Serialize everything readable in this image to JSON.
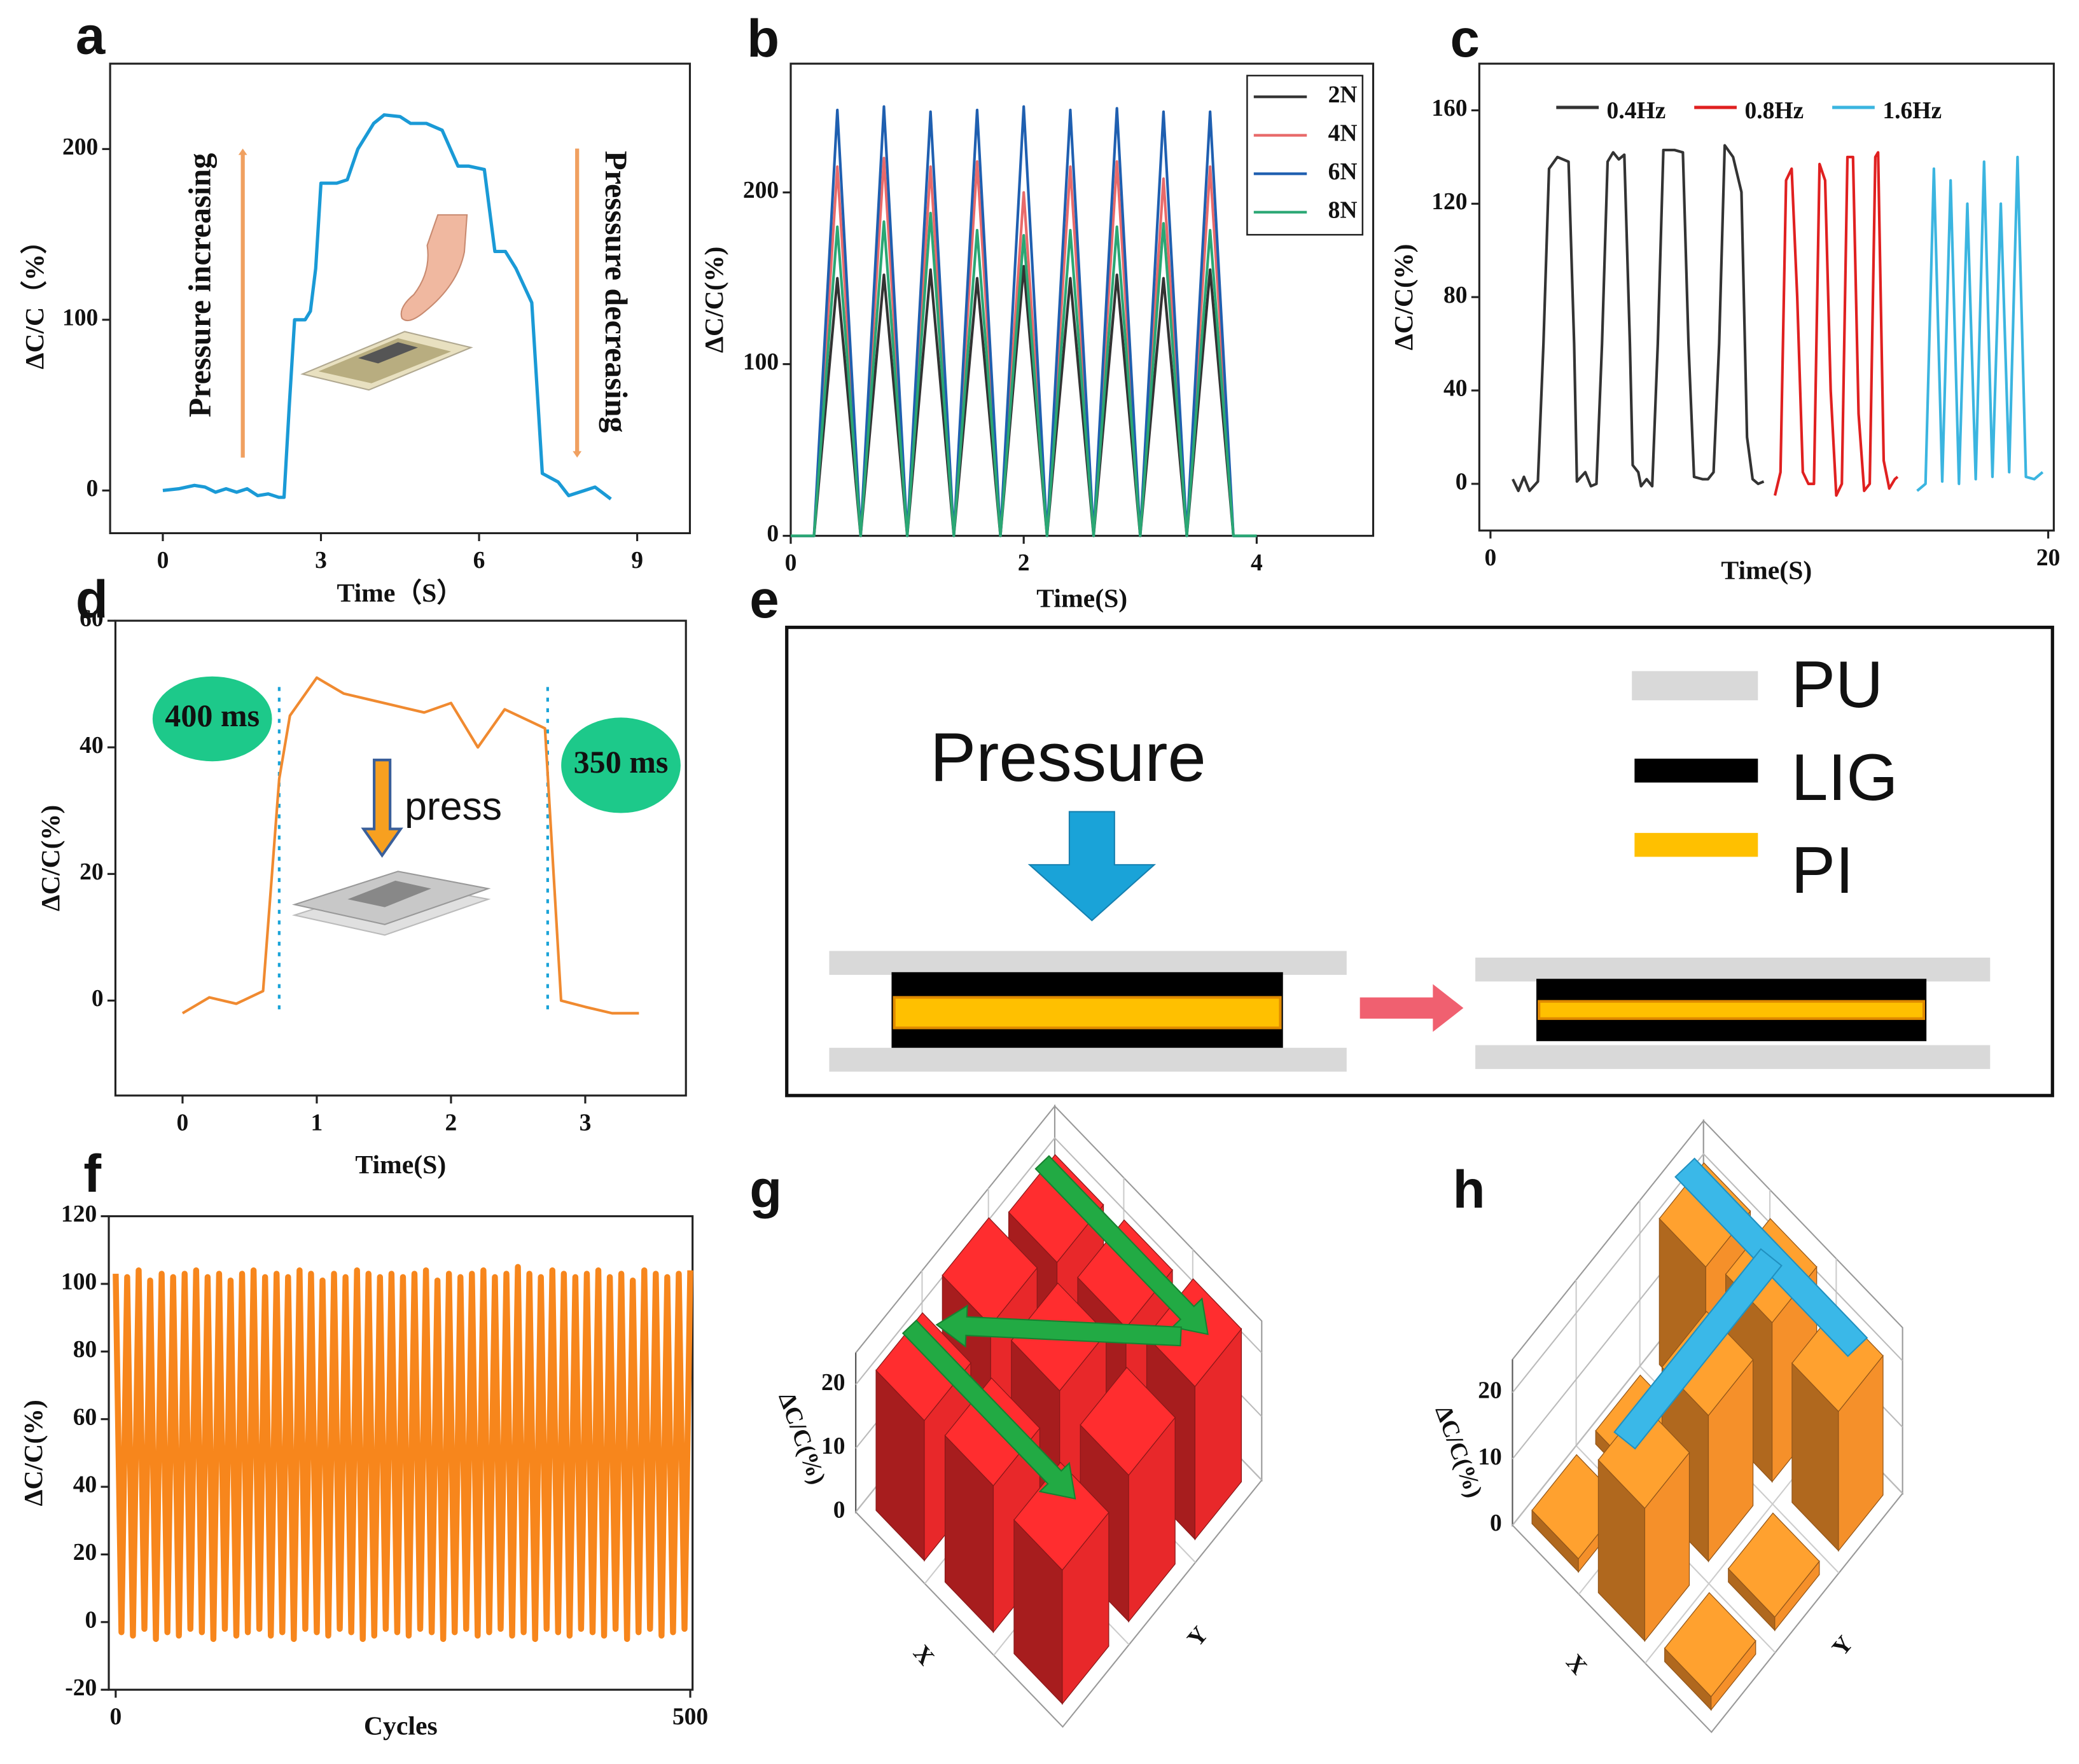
{
  "chart_data": [
    {
      "panel": "a",
      "type": "line",
      "xlabel": "Time（S）",
      "ylabel": "ΔC/C（%）",
      "color": "#1a9ad6",
      "x": [
        0,
        0.3,
        0.6,
        0.8,
        1.0,
        1.2,
        1.4,
        1.6,
        1.8,
        2.0,
        2.2,
        2.3,
        2.4,
        2.5,
        2.7,
        2.8,
        2.9,
        3.0,
        3.3,
        3.5,
        3.7,
        4.0,
        4.2,
        4.5,
        4.7,
        5.0,
        5.3,
        5.6,
        5.8,
        6.1,
        6.3,
        6.5,
        6.7,
        7.0,
        7.2,
        7.5,
        7.7,
        8.0,
        8.2,
        8.5
      ],
      "values": [
        0,
        1,
        3,
        2,
        -1,
        1,
        -1,
        1,
        -3,
        -2,
        -4,
        -4,
        50,
        100,
        100,
        105,
        130,
        180,
        180,
        182,
        200,
        215,
        220,
        219,
        215,
        215,
        211,
        190,
        190,
        188,
        140,
        140,
        130,
        110,
        10,
        5,
        -3,
        0,
        2,
        -5
      ],
      "xlim": [
        -1,
        10
      ],
      "xticks": [
        0,
        3,
        6,
        9
      ],
      "ylim": [
        -25,
        250
      ],
      "yticks": [
        0,
        100,
        200
      ],
      "annotations": [
        "Pressure increasing",
        "Presssure decreasing"
      ]
    },
    {
      "panel": "b",
      "type": "line",
      "xlabel": "Time(S)",
      "ylabel": "ΔC/C(%)",
      "legend": "upper right",
      "x": [
        0,
        0.2,
        0.4,
        0.6,
        0.8,
        1.0,
        1.2,
        1.4,
        1.6,
        1.8,
        2.0,
        2.2,
        2.4,
        2.6,
        2.8,
        3.0,
        3.2,
        3.4,
        3.6,
        3.8,
        4.0
      ],
      "series": [
        {
          "name": "2N",
          "color": "#333333",
          "values": [
            0,
            0,
            150,
            0,
            152,
            0,
            155,
            0,
            150,
            0,
            157,
            0,
            150,
            0,
            152,
            0,
            150,
            0,
            155,
            0,
            0
          ]
        },
        {
          "name": "4N",
          "color": "#e86a6a",
          "values": [
            0,
            0,
            215,
            0,
            220,
            0,
            215,
            0,
            218,
            0,
            200,
            0,
            215,
            0,
            218,
            0,
            208,
            0,
            215,
            0,
            0
          ]
        },
        {
          "name": "6N",
          "color": "#1f5fb0",
          "values": [
            0,
            0,
            248,
            0,
            250,
            0,
            247,
            0,
            248,
            0,
            250,
            0,
            248,
            0,
            249,
            0,
            247,
            0,
            247,
            0,
            0
          ]
        },
        {
          "name": "8N",
          "color": "#2aa774",
          "values": [
            0,
            0,
            180,
            0,
            183,
            0,
            188,
            0,
            178,
            0,
            175,
            0,
            178,
            0,
            180,
            0,
            182,
            0,
            178,
            0,
            0
          ]
        }
      ],
      "xlim": [
        0,
        5
      ],
      "xticks": [
        0,
        2,
        4
      ],
      "ylim": [
        0,
        275
      ],
      "yticks": [
        0,
        100,
        200
      ]
    },
    {
      "panel": "c",
      "type": "line",
      "xlabel": "Time(S)",
      "ylabel": "ΔC/C(%)",
      "legend": "upper center",
      "series": [
        {
          "name": "0.4Hz",
          "color": "#333333",
          "x": [
            0.8,
            1.0,
            1.2,
            1.4,
            1.7,
            1.9,
            2.1,
            2.4,
            2.8,
            3.0,
            3.1,
            3.4,
            3.6,
            3.8,
            4.0,
            4.2,
            4.4,
            4.6,
            4.8,
            5.0,
            5.1,
            5.3,
            5.4,
            5.6,
            5.8,
            6.0,
            6.2,
            6.6,
            6.9,
            7.1,
            7.3,
            7.6,
            7.8,
            8.0,
            8.2,
            8.4,
            8.7,
            9.0,
            9.2,
            9.4,
            9.6,
            9.8
          ],
          "values": [
            2,
            -3,
            3,
            -3,
            1,
            60,
            135,
            140,
            138,
            60,
            1,
            5,
            -1,
            0,
            60,
            138,
            142,
            139,
            141,
            60,
            8,
            5,
            -1,
            2,
            -1,
            60,
            143,
            143,
            142,
            60,
            3,
            2,
            2,
            5,
            60,
            145,
            140,
            125,
            20,
            2,
            0,
            1
          ]
        },
        {
          "name": "0.8Hz",
          "color": "#e02020",
          "x": [
            10.2,
            10.4,
            10.6,
            10.8,
            11.0,
            11.2,
            11.4,
            11.6,
            11.8,
            12.0,
            12.2,
            12.4,
            12.6,
            12.8,
            13.0,
            13.2,
            13.4,
            13.6,
            13.8,
            13.9,
            14.1,
            14.3,
            14.5,
            14.6
          ],
          "values": [
            -5,
            5,
            130,
            135,
            80,
            5,
            0,
            0,
            137,
            130,
            40,
            -5,
            0,
            140,
            140,
            30,
            -3,
            0,
            140,
            142,
            10,
            -2,
            2,
            3
          ]
        },
        {
          "name": "1.6Hz",
          "color": "#3bb5e0",
          "x": [
            15.3,
            15.6,
            15.9,
            16.2,
            16.5,
            16.8,
            17.1,
            17.4,
            17.7,
            18.0,
            18.3,
            18.6,
            18.9,
            19.2,
            19.5,
            19.8
          ],
          "values": [
            -3,
            0,
            135,
            1,
            130,
            0,
            120,
            2,
            138,
            3,
            120,
            5,
            140,
            3,
            2,
            5
          ]
        }
      ],
      "xlim": [
        -0.4,
        20.2
      ],
      "xticks": [
        0,
        20
      ],
      "ylim": [
        -20,
        180
      ],
      "yticks": [
        0,
        40,
        80,
        120,
        160
      ]
    },
    {
      "panel": "d",
      "type": "line",
      "xlabel": "Time(S)",
      "ylabel": "ΔC/C(%)",
      "color": "#f08a30",
      "x": [
        0,
        0.2,
        0.4,
        0.6,
        0.72,
        0.8,
        1.0,
        1.2,
        1.4,
        1.6,
        1.8,
        2.0,
        2.2,
        2.4,
        2.6,
        2.7,
        2.82,
        3.0,
        3.2,
        3.4
      ],
      "values": [
        -2,
        0.5,
        -0.5,
        1.5,
        35,
        45,
        51,
        48.5,
        47.5,
        46.5,
        45.5,
        47,
        40,
        46,
        44,
        43,
        0,
        -1,
        -2,
        -2
      ],
      "xlim": [
        -0.5,
        3.75
      ],
      "xticks": [
        0,
        1,
        2,
        3
      ],
      "ylim": [
        -15,
        60
      ],
      "yticks": [
        0,
        20,
        40,
        60
      ],
      "vlines": [
        0.72,
        2.72
      ],
      "annotations": [
        "400 ms",
        "350 ms",
        "press"
      ]
    },
    {
      "panel": "f",
      "type": "line",
      "xlabel": "Cycles",
      "ylabel": "ΔC/C(%)",
      "color": "#f7861c",
      "x": [
        0,
        5,
        10,
        15,
        20,
        25,
        30,
        35,
        40,
        45,
        50,
        55,
        60,
        65,
        70,
        75,
        80,
        85,
        90,
        95,
        100,
        105,
        110,
        115,
        120,
        125,
        130,
        135,
        140,
        145,
        150,
        155,
        160,
        165,
        170,
        175,
        180,
        185,
        190,
        195,
        200,
        205,
        210,
        215,
        220,
        225,
        230,
        235,
        240,
        245,
        250,
        255,
        260,
        265,
        270,
        275,
        280,
        285,
        290,
        295,
        300,
        305,
        310,
        315,
        320,
        325,
        330,
        335,
        340,
        345,
        350,
        355,
        360,
        365,
        370,
        375,
        380,
        385,
        390,
        395,
        400,
        405,
        410,
        415,
        420,
        425,
        430,
        435,
        440,
        445,
        450,
        455,
        460,
        465,
        470,
        475,
        480,
        485,
        490,
        495,
        500
      ],
      "values": [
        103,
        -3,
        102,
        -4,
        104,
        -2,
        101,
        -5,
        103,
        -3,
        102,
        -4,
        103,
        -2,
        104,
        -3,
        102,
        -5,
        103,
        -2,
        101,
        -4,
        103,
        -3,
        104,
        -2,
        102,
        -4,
        103,
        -3,
        102,
        -5,
        104,
        -2,
        103,
        -3,
        101,
        -4,
        103,
        -2,
        102,
        -3,
        104,
        -5,
        103,
        -4,
        102,
        -2,
        103,
        -3,
        102,
        -4,
        103,
        -2,
        104,
        -3,
        101,
        -5,
        103,
        -3,
        102,
        -2,
        103,
        -4,
        104,
        -3,
        102,
        -2,
        103,
        -4,
        105,
        -3,
        103,
        -5,
        102,
        -2,
        104,
        -3,
        103,
        -4,
        102,
        -2,
        103,
        -3,
        104,
        -4,
        102,
        -2,
        103,
        -5,
        101,
        -3,
        104,
        -2,
        103,
        -4,
        102,
        -3,
        103,
        -2,
        104
      ],
      "xlim": [
        -6,
        502
      ],
      "xticks": [
        0,
        500
      ],
      "ylim": [
        -20,
        120
      ],
      "yticks": [
        -20,
        0,
        20,
        40,
        60,
        80,
        100,
        120
      ]
    },
    {
      "panel": "g",
      "type": "bar3d",
      "zlabel": "ΔC/C(%)",
      "xlabel": "X",
      "ylabel": "Y",
      "color": "#e8282a",
      "values": [
        [
          22,
          24,
          21
        ],
        [
          23,
          25,
          22
        ],
        [
          21,
          23,
          24
        ]
      ],
      "zlim": [
        0,
        25
      ],
      "zticks": [
        0,
        10,
        20
      ]
    },
    {
      "panel": "h",
      "type": "bar3d",
      "zlabel": "ΔC/C(%)",
      "xlabel": "X",
      "ylabel": "Y",
      "color": "#f5902a",
      "values": [
        [
          2,
          2,
          22
        ],
        [
          20,
          22,
          24
        ],
        [
          2,
          2,
          21
        ]
      ],
      "zlim": [
        0,
        25
      ],
      "zticks": [
        0,
        10,
        20
      ]
    }
  ],
  "diagram": {
    "panel": "e",
    "title": "Pressure",
    "legend": [
      "PU",
      "LIG",
      "PI"
    ]
  }
}
